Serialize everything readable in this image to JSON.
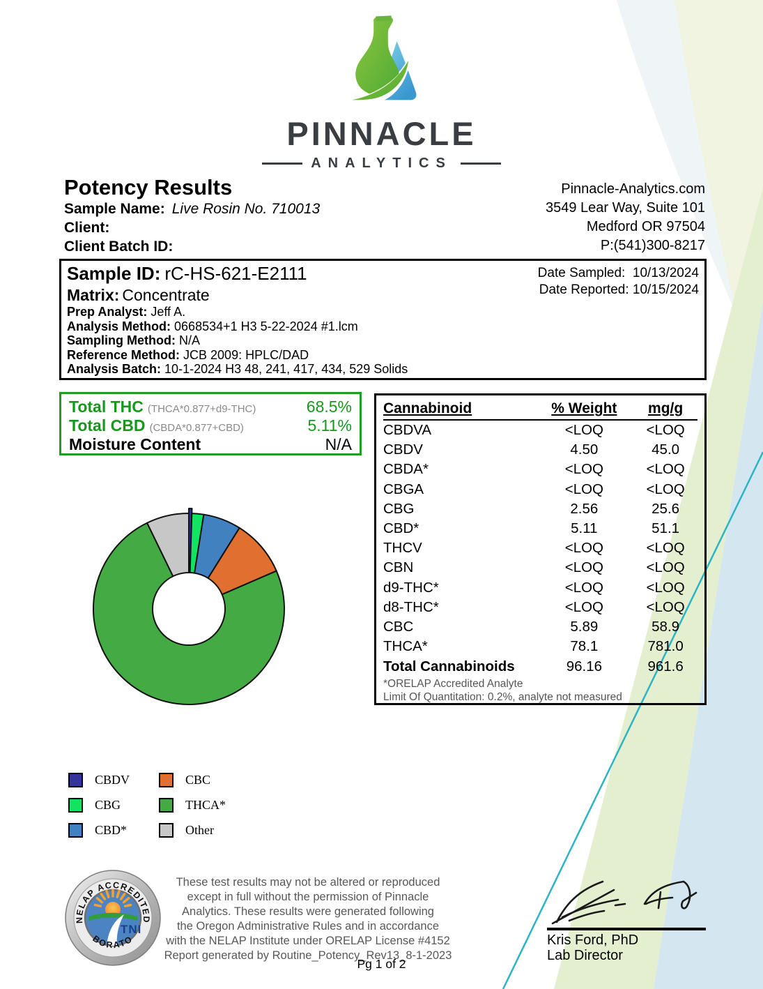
{
  "logo": {
    "brand": "PINNACLE",
    "subtitle": "ANALYTICS"
  },
  "header": {
    "title": "Potency Results",
    "sample_name_label": "Sample Name:",
    "sample_name": "Live Rosin No. 710013",
    "client_label": "Client:",
    "client": "",
    "client_batch_label": "Client Batch ID:",
    "client_batch_id": "",
    "contact": {
      "website": "Pinnacle-Analytics.com",
      "address1": "3549 Lear Way, Suite 101",
      "address2": "Medford OR 97504",
      "phone": "P:(541)300-8217"
    }
  },
  "sample_box": {
    "sample_id_label": "Sample ID:",
    "sample_id": "rC-HS-621-E2111",
    "matrix_label": "Matrix:",
    "matrix": "Concentrate",
    "fields": [
      {
        "label": "Prep Analyst:",
        "value": "Jeff A."
      },
      {
        "label": "Analysis Method:",
        "value": "0668534+1 H3 5-22-2024 #1.lcm"
      },
      {
        "label": "Sampling Method:",
        "value": "N/A"
      },
      {
        "label": "Reference Method:",
        "value": "JCB 2009: HPLC/DAD"
      },
      {
        "label": "Analysis Batch:",
        "value": "10-1-2024 H3 48, 241, 417, 434, 529 Solids"
      }
    ],
    "date_sampled_label": "Date Sampled:",
    "date_sampled": "10/13/2024",
    "date_reported_label": "Date Reported:",
    "date_reported": "10/15/2024"
  },
  "totals_box": {
    "rows": [
      {
        "label": "Total THC",
        "formula": "(THCA*0.877+d9-THC)",
        "value": "68.5%",
        "green": true
      },
      {
        "label": "Total CBD",
        "formula": "(CBDA*0.877+CBD)",
        "value": "5.11%",
        "green": true
      },
      {
        "label": "Moisture Content",
        "formula": "",
        "value": "N/A",
        "green": false
      }
    ]
  },
  "cannabinoid_table": {
    "headers": [
      "Cannabinoid",
      "% Weight",
      "mg/g"
    ],
    "rows": [
      [
        "CBDVA",
        "<LOQ",
        "<LOQ"
      ],
      [
        "CBDV",
        "4.50",
        "45.0"
      ],
      [
        "CBDA*",
        "<LOQ",
        "<LOQ"
      ],
      [
        "CBGA",
        "<LOQ",
        "<LOQ"
      ],
      [
        "CBG",
        "2.56",
        "25.6"
      ],
      [
        "CBD*",
        "5.11",
        "51.1"
      ],
      [
        "THCV",
        "<LOQ",
        "<LOQ"
      ],
      [
        "CBN",
        "<LOQ",
        "<LOQ"
      ],
      [
        "d9-THC*",
        "<LOQ",
        "<LOQ"
      ],
      [
        "d8-THC*",
        "<LOQ",
        "<LOQ"
      ],
      [
        "CBC",
        "5.89",
        "58.9"
      ],
      [
        "THCA*",
        "78.1",
        "781.0"
      ]
    ],
    "total_row": [
      "Total Cannabinoids",
      "96.16",
      "961.6"
    ],
    "footnotes": [
      "*ORELAP Accredited Analyte",
      "Limit Of Quantitation: 0.2%, analyte not measured"
    ]
  },
  "chart_data": {
    "type": "pie",
    "style": "donut",
    "title": "",
    "start_angle_deg": 0,
    "direction": "clockwise",
    "inner_radius_ratio": 0.38,
    "legend_position": "below-left, two columns",
    "segments": [
      {
        "label": "CBDV",
        "pct": 0.5,
        "color": "#34349a",
        "exploded": true
      },
      {
        "label": "CBG",
        "pct": 2.0,
        "color": "#12e360",
        "exploded": false
      },
      {
        "label": "CBD*",
        "pct": 6.4,
        "color": "#4181c0",
        "exploded": false
      },
      {
        "label": "CBC",
        "pct": 9.6,
        "color": "#e06f30",
        "exploded": false
      },
      {
        "label": "THCA*",
        "pct": 74.3,
        "color": "#44ab44",
        "exploded": false
      },
      {
        "label": "Other",
        "pct": 7.2,
        "color": "#c7c7c7",
        "exploded": false
      }
    ],
    "note": "Unlabeled donut; segment percentages estimated from arc angles. Corresponding table values: CBDV 4.50, CBG 2.56, CBD* 5.11, CBC 5.89, THCA* 78.1 (% weight)."
  },
  "legend": {
    "columns": [
      [
        "CBDV",
        "CBG",
        "CBD*"
      ],
      [
        "CBC",
        "THCA*",
        "Other"
      ]
    ]
  },
  "footer": {
    "seal": {
      "top_text": "NELAP ACCREDITED",
      "bottom_text": "LABORATORY",
      "center_text": "TNI"
    },
    "disclaimer_lines": [
      "These test results may not be altered or reproduced",
      "except in full without the permission of Pinnacle",
      "Analytics. These results were generated following",
      "the Oregon Administrative Rules and in accordance",
      "with the NELAP Institute under ORELAP License #4152",
      "Report generated by Routine_Potency_Rev13_8-1-2023"
    ],
    "page_label": "Pg 1 of 2",
    "signature": {
      "name": "Kris Ford, PhD",
      "title": "Lab Director"
    }
  },
  "colors": {
    "accent_green_text": "#17981d",
    "totals_box_border": "#1f9e24",
    "teal_diagonal_line": "#2bb4c6",
    "band_pale_green": "#e3efcf",
    "band_pale_blue": "#d4e7f0",
    "brand_dark_gray": "#3a3d42"
  }
}
